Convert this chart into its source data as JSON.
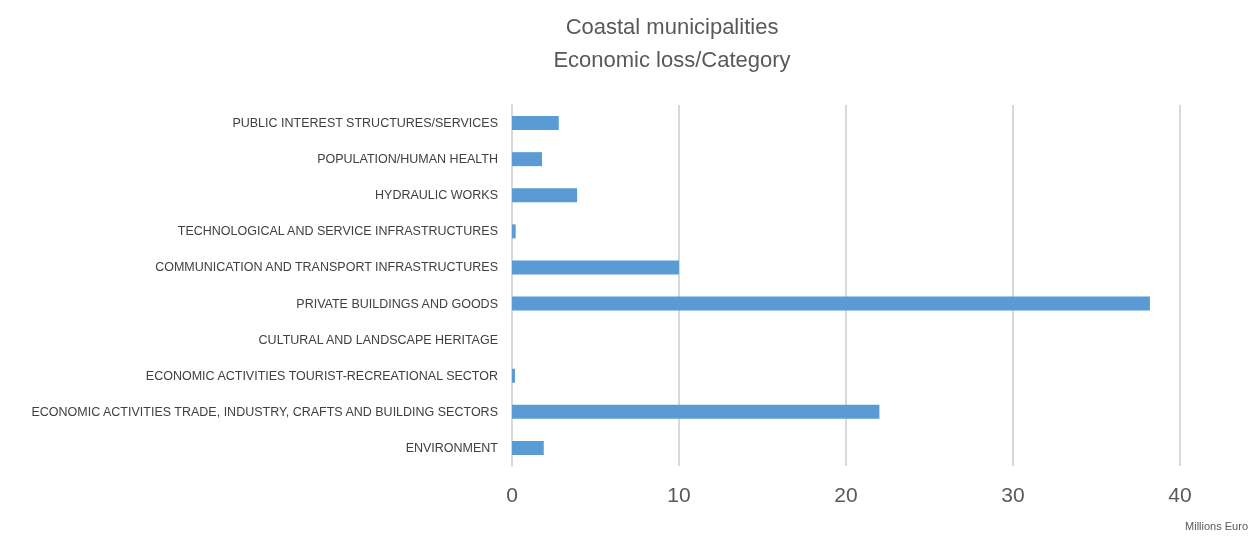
{
  "chart_data": {
    "type": "bar",
    "orientation": "horizontal",
    "title": "Coastal municipalities",
    "subtitle": "Economic loss/Category",
    "xlabel": "Millions Euro",
    "categories": [
      "PUBLIC INTEREST STRUCTURES/SERVICES",
      "POPULATION/HUMAN HEALTH",
      "HYDRAULIC WORKS",
      "TECHNOLOGICAL AND SERVICE INFRASTRUCTURES",
      "COMMUNICATION AND TRANSPORT INFRASTRUCTURES",
      "PRIVATE BUILDINGS AND GOODS",
      "CULTURAL AND LANDSCAPE HERITAGE",
      "ECONOMIC ACTIVITIES TOURIST-RECREATIONAL SECTOR",
      "ECONOMIC ACTIVITIES TRADE, INDUSTRY, CRAFTS AND BUILDING SECTORS",
      "ENVIRONMENT"
    ],
    "values": [
      2.8,
      1.8,
      3.9,
      0.22,
      10.0,
      38.2,
      0,
      0.18,
      22.0,
      1.9
    ],
    "color": "#5b9bd5",
    "xlim": [
      0,
      40
    ],
    "xticks": [
      0,
      10,
      20,
      30,
      40
    ],
    "grid": "x"
  }
}
